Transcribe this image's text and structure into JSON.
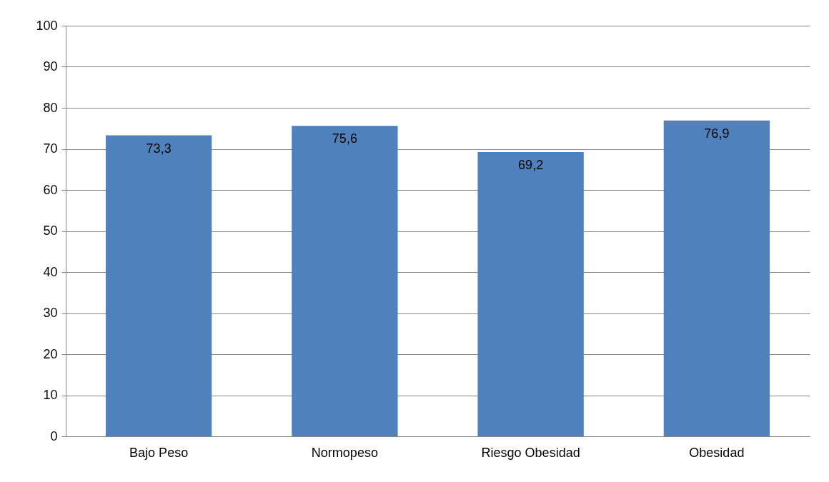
{
  "chart_data": {
    "type": "bar",
    "categories": [
      "Bajo Peso",
      "Normopeso",
      "Riesgo Obesidad",
      "Obesidad"
    ],
    "values": [
      73.3,
      75.6,
      69.2,
      76.9
    ],
    "value_labels": [
      "73,3",
      "75,6",
      "69,2",
      "76,9"
    ],
    "color": "#4f81bd",
    "ylim": [
      0,
      100
    ],
    "yticks": [
      0,
      10,
      20,
      30,
      40,
      50,
      60,
      70,
      80,
      90,
      100
    ],
    "grid": "y"
  }
}
